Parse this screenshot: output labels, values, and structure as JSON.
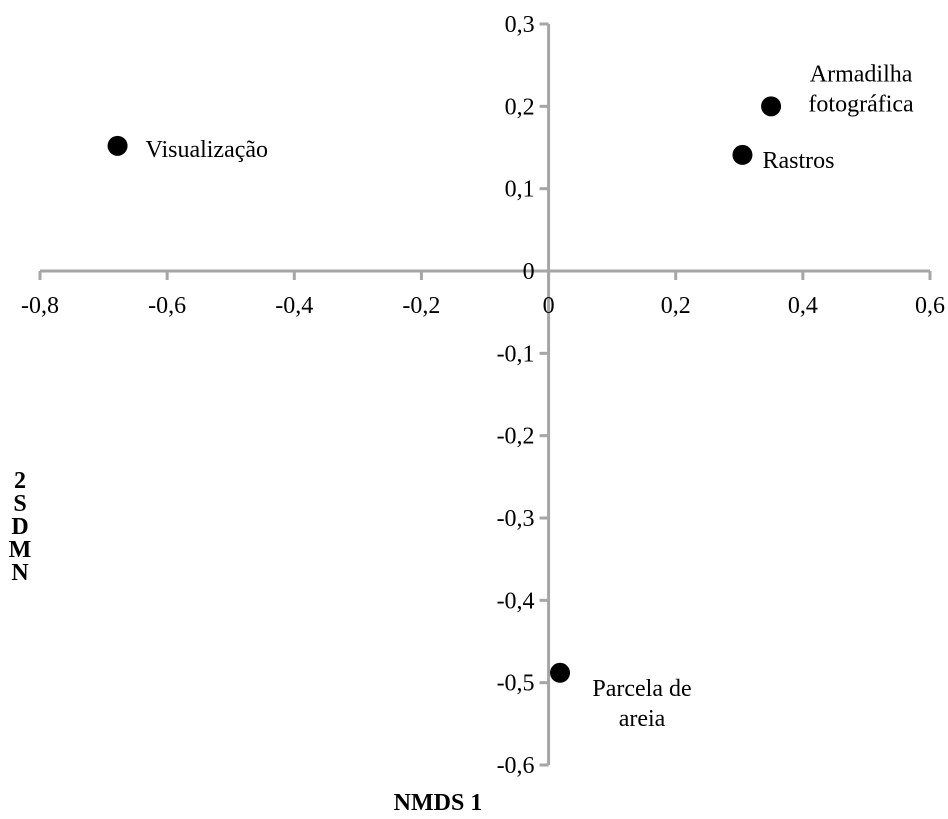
{
  "chart_data": {
    "type": "scatter",
    "title": "",
    "xlabel": "NMDS 1",
    "ylabel": "NMDS 2",
    "xlim": [
      -0.8,
      0.6
    ],
    "ylim": [
      -0.6,
      0.3
    ],
    "x_ticks": [
      -0.8,
      -0.6,
      -0.4,
      -0.2,
      0,
      0.2,
      0.4,
      0.6
    ],
    "y_ticks": [
      0.3,
      0.2,
      0.1,
      0,
      -0.1,
      -0.2,
      -0.3,
      -0.4,
      -0.5,
      -0.6
    ],
    "x_tick_labels": [
      "-0,8",
      "-0,6",
      "-0,4",
      "-0,2",
      "0",
      "0,2",
      "0,4",
      "0,6"
    ],
    "y_tick_labels": [
      "0,3",
      "0,2",
      "0,1",
      "0",
      "-0,1",
      "-0,2",
      "-0,3",
      "-0,4",
      "-0,5",
      "-0,6"
    ],
    "grid": false,
    "legend": "none",
    "axis_color": "#a6a6a6",
    "marker_color": "#000000",
    "points": [
      {
        "label_lines": [
          "Armadilha",
          "fotográfica"
        ],
        "x": 0.35,
        "y": 0.2
      },
      {
        "label_lines": [
          "Rastros"
        ],
        "x": 0.305,
        "y": 0.141
      },
      {
        "label_lines": [
          "Visualização"
        ],
        "x": -0.678,
        "y": 0.152
      },
      {
        "label_lines": [
          "Parcela de",
          "areia"
        ],
        "x": 0.018,
        "y": -0.488
      }
    ]
  }
}
